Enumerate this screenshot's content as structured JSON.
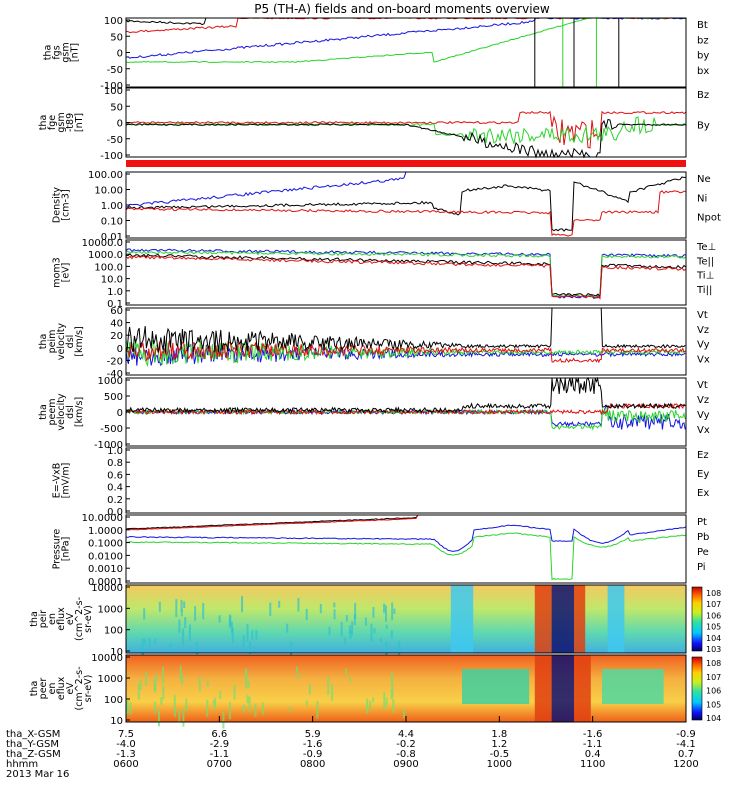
{
  "title": "P5 (TH-A) fields and on-board moments overview",
  "colors": {
    "black": "#000000",
    "red": "#e01010",
    "green": "#2ad42a",
    "blue": "#1515e0"
  },
  "chart_data": [
    {
      "type": "line",
      "ylabel_lines": [
        "tha",
        "fgs",
        "gsm",
        "[nT]"
      ],
      "yticks": [
        "100",
        "50",
        "0",
        "-50",
        "-100"
      ],
      "ylim": [
        -100,
        100
      ],
      "series": [
        {
          "name": "Bt",
          "color": "black"
        },
        {
          "name": "bz",
          "color": "red"
        },
        {
          "name": "by",
          "color": "green"
        },
        {
          "name": "bx",
          "color": "blue"
        }
      ]
    },
    {
      "type": "line",
      "ylabel_lines": [
        "tha",
        "fge",
        "gsm",
        "-t89",
        "[nT]"
      ],
      "yticks": [
        "100",
        "50",
        "0",
        "-50",
        "-100"
      ],
      "ylim": [
        -120,
        100
      ],
      "series": [
        {
          "name": "Bz",
          "color": "red"
        },
        {
          "name": "By",
          "color": "green"
        }
      ]
    },
    {
      "type": "line",
      "ylabel_lines": [
        "Density",
        "[cm-3]"
      ],
      "yticks": [
        "100.00",
        "10.00",
        "1.00",
        "0.10",
        "0.01"
      ],
      "scale": "log",
      "series": [
        {
          "name": "Ne",
          "color": "red"
        },
        {
          "name": "Ni",
          "color": "black"
        },
        {
          "name": "Npot",
          "color": "blue"
        }
      ]
    },
    {
      "type": "line",
      "ylabel_lines": [
        "mom3",
        "[eV]"
      ],
      "yticks": [
        "10000.0",
        "1000.0",
        "100.0",
        "10.0",
        "1.0",
        "0.1"
      ],
      "scale": "log",
      "series": [
        {
          "name": "Te⊥",
          "color": "red"
        },
        {
          "name": "Te||",
          "color": "black"
        },
        {
          "name": "Ti⊥",
          "color": "blue"
        },
        {
          "name": "Ti||",
          "color": "green"
        }
      ]
    },
    {
      "type": "line",
      "ylabel_lines": [
        "tha",
        "peim",
        "velocity",
        "dsl",
        "[km/s]"
      ],
      "yticks": [
        "60",
        "40",
        "20",
        "0",
        "-20",
        "-40"
      ],
      "ylim": [
        -40,
        60
      ],
      "series": [
        {
          "name": "Vt",
          "color": "black"
        },
        {
          "name": "Vz",
          "color": "red"
        },
        {
          "name": "Vy",
          "color": "green"
        },
        {
          "name": "Vx",
          "color": "blue"
        }
      ]
    },
    {
      "type": "line",
      "ylabel_lines": [
        "tha",
        "peem",
        "velocity",
        "dsl",
        "[km/s]"
      ],
      "yticks": [
        "1000",
        "500",
        "0",
        "-500",
        "-1000"
      ],
      "ylim": [
        -1000,
        1000
      ],
      "series": [
        {
          "name": "Vt",
          "color": "black"
        },
        {
          "name": "Vz",
          "color": "red"
        },
        {
          "name": "Vy",
          "color": "green"
        },
        {
          "name": "Vx",
          "color": "blue"
        }
      ]
    },
    {
      "type": "line",
      "ylabel_lines": [
        "E=-VxB",
        "[mV/m]"
      ],
      "yticks": [
        "1.0",
        "0.8",
        "0.6",
        "0.4",
        "0.2",
        "0.0"
      ],
      "ylim": [
        0,
        1
      ],
      "series": [
        {
          "name": "Ez",
          "color": "red"
        },
        {
          "name": "Ey",
          "color": "green"
        },
        {
          "name": "Ex",
          "color": "blue"
        }
      ]
    },
    {
      "type": "line",
      "ylabel_lines": [
        "Pressure",
        "[nPa]"
      ],
      "yticks": [
        "10.0000",
        "1.0000",
        "0.1000",
        "0.0100",
        "0.0010",
        "0.0001"
      ],
      "scale": "log",
      "series": [
        {
          "name": "Pt",
          "color": "black"
        },
        {
          "name": "Pb",
          "color": "red"
        },
        {
          "name": "Pe",
          "color": "green"
        },
        {
          "name": "Pi",
          "color": "blue"
        }
      ]
    },
    {
      "type": "heatmap",
      "ylabel_lines": [
        "tha",
        "peir",
        "en",
        "eflux",
        "eV",
        "(cm^2-s-",
        "sr-eV)"
      ],
      "yticks": [
        "10000",
        "1000",
        "100",
        "10"
      ],
      "scale": "log",
      "colorbar_ticks": [
        "10^8",
        "10^7",
        "10^6",
        "10^5",
        "10^4",
        "10^3"
      ]
    },
    {
      "type": "heatmap",
      "ylabel_lines": [
        "tha",
        "peer",
        "en",
        "eflux",
        "eV",
        "(cm^2-s-",
        "sr-eV)"
      ],
      "yticks": [
        "10000",
        "1000",
        "100",
        "10"
      ],
      "scale": "log",
      "colorbar_ticks": [
        "10^8",
        "10^7",
        "10^6",
        "10^5",
        "10^4"
      ]
    }
  ],
  "xaxis": {
    "row_labels": [
      "tha_X-GSM",
      "tha_Y-GSM",
      "tha_Z-GSM",
      "hhmm"
    ],
    "columns": [
      {
        "x": "7.5",
        "y": "-4.0",
        "z": "-1.3",
        "t": "0600"
      },
      {
        "x": "6.6",
        "y": "-2.9",
        "z": "-1.1",
        "t": "0700"
      },
      {
        "x": "5.9",
        "y": "-1.6",
        "z": "-0.9",
        "t": "0800"
      },
      {
        "x": "4.4",
        "y": "-0.2",
        "z": "-0.8",
        "t": "0900"
      },
      {
        "x": "1.8",
        "y": "1.2",
        "z": "-0.5",
        "t": "1000"
      },
      {
        "x": "-1.6",
        "y": "-1.1",
        "z": "0.4",
        "t": "1100"
      },
      {
        "x": "-0.9",
        "y": "-4.1",
        "z": "0.7",
        "t": "1200"
      }
    ],
    "date": "2013 Mar 16"
  }
}
